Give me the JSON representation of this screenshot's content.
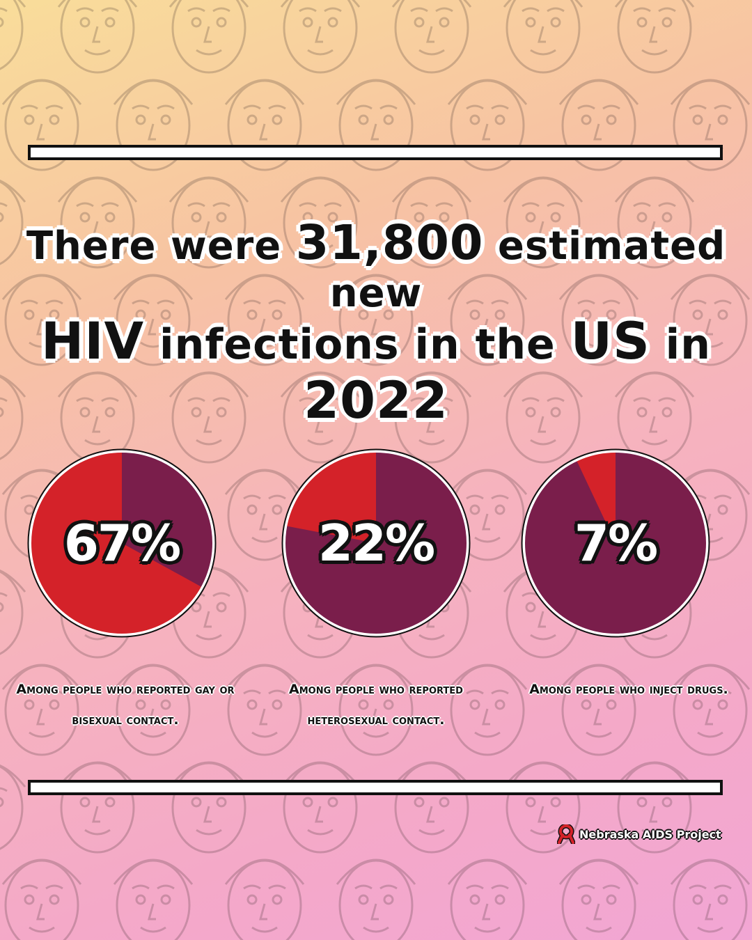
{
  "headline": {
    "line1_part1": "There were",
    "line1_number": "31,800",
    "line1_part2": "estimated new",
    "line2_part1": "HIV",
    "line2_part2": "infections in the",
    "line2_part3": "US",
    "line2_part4": "in",
    "line2_part5": "2022"
  },
  "chart_data": {
    "type": "pie",
    "charts": [
      {
        "label": "67%",
        "value": 67,
        "caption_line1": "Among people who reported gay or",
        "caption_line2": "bisexual contact."
      },
      {
        "label": "22%",
        "value": 22,
        "caption_line1": "Among people who reported",
        "caption_line2": "heterosexual contact."
      },
      {
        "label": "7%",
        "value": 7,
        "caption_line1": "Among people who inject drugs.",
        "caption_line2": ""
      }
    ],
    "colors": {
      "highlight": "#d42229",
      "rest": "#7a1e4b"
    }
  },
  "logo": {
    "text": "Nebraska AIDS Project",
    "icon": "red-ribbon-icon"
  },
  "colors": {
    "bar_fill": "#ffffff",
    "outline": "#111111",
    "pie_highlight": "#d42229",
    "pie_rest": "#7a1e4b"
  }
}
